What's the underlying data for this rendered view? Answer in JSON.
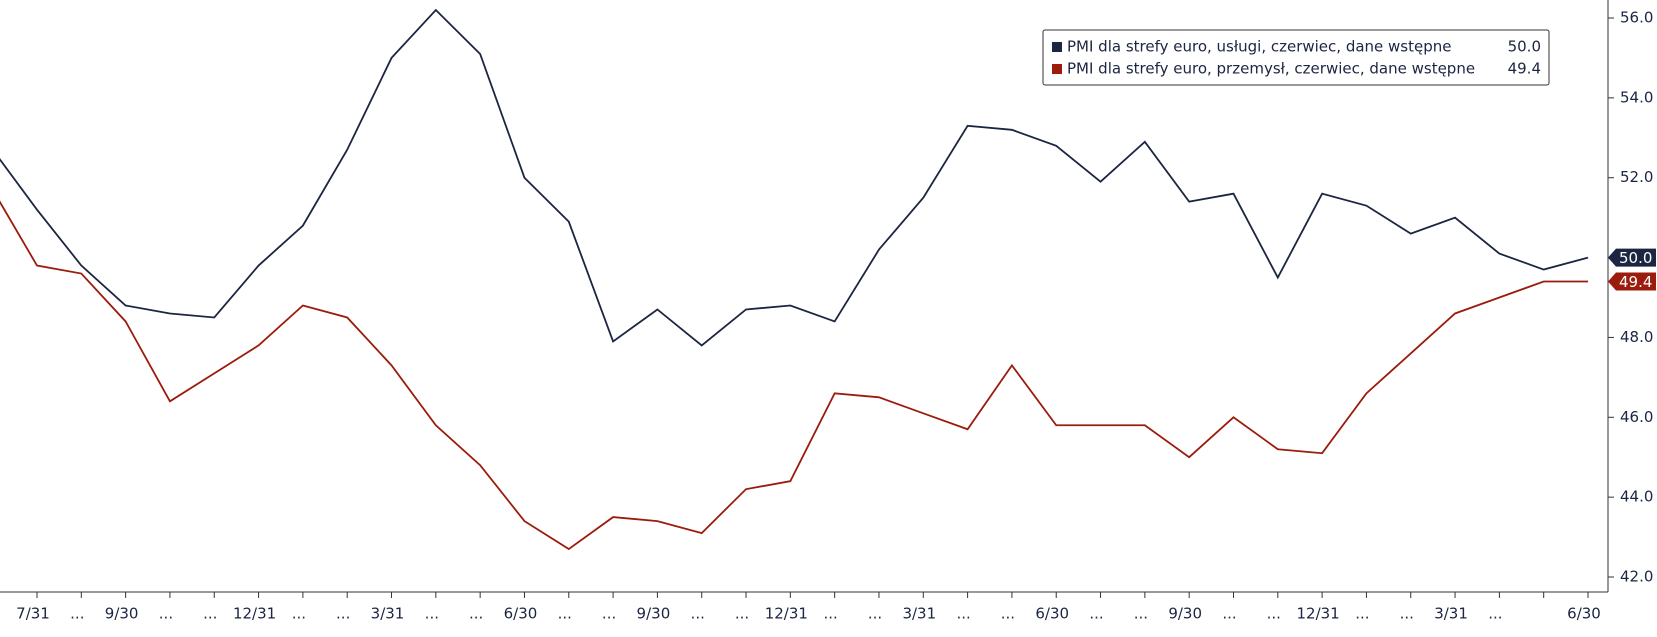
{
  "chart_data": {
    "type": "line",
    "categories": [
      null,
      "7/31",
      "...",
      "9/30",
      "...",
      "...",
      "12/31",
      "...",
      "...",
      "3/31",
      "...",
      "...",
      "6/30",
      "...",
      "...",
      "9/30",
      "...",
      "...",
      "12/31",
      "...",
      "...",
      "3/31",
      "...",
      "...",
      "6/30",
      "...",
      "...",
      "9/30",
      "...",
      "...",
      "12/31",
      "...",
      "...",
      "3/31",
      "...",
      null,
      "6/30"
    ],
    "series": [
      {
        "name": "PMI dla strefy euro, usługi, czerwiec, dane wstępne",
        "color": "#1c2541",
        "values": [
          52.7,
          51.2,
          49.8,
          48.8,
          48.6,
          48.5,
          49.8,
          50.8,
          52.7,
          55.0,
          56.2,
          55.1,
          52.0,
          50.9,
          47.9,
          48.7,
          47.8,
          48.7,
          48.8,
          48.4,
          50.2,
          51.5,
          53.3,
          53.2,
          52.8,
          51.9,
          52.9,
          51.4,
          51.6,
          49.5,
          51.6,
          51.3,
          50.6,
          51.0,
          50.1,
          49.7,
          50.0
        ],
        "value_labels": [
          null,
          null,
          null,
          null,
          null,
          null,
          null,
          null,
          null,
          null,
          null,
          null,
          null,
          null,
          null,
          null,
          null,
          null,
          null,
          null,
          null,
          null,
          null,
          null,
          null,
          null,
          null,
          null,
          null,
          null,
          null,
          null,
          null,
          null,
          null,
          null,
          "50.0"
        ]
      },
      {
        "name": "PMI dla strefy euro, przemysł, czerwiec, dane wstępne",
        "color": "#9b1c0c",
        "values": [
          51.7,
          49.8,
          49.6,
          48.4,
          46.4,
          47.1,
          47.8,
          48.8,
          48.5,
          47.3,
          45.8,
          44.8,
          43.4,
          42.7,
          43.5,
          43.4,
          43.1,
          44.2,
          44.4,
          46.6,
          46.5,
          46.1,
          45.7,
          47.3,
          45.8,
          45.8,
          45.8,
          45.0,
          46.0,
          45.2,
          45.1,
          46.6,
          47.6,
          48.6,
          49.0,
          49.4,
          49.4
        ]
      }
    ],
    "ylim": [
      41.5,
      56.4
    ],
    "yticks": [
      {
        "value": 42,
        "label": "42.0"
      },
      {
        "value": 44,
        "label": "44.0"
      },
      {
        "value": 46,
        "label": "46.0"
      },
      {
        "value": 48,
        "label": "48.0"
      },
      {
        "value": 50,
        "label": "50.0"
      },
      {
        "value": 52,
        "label": "52.0"
      },
      {
        "value": 54,
        "label": "54.0"
      },
      {
        "value": 56,
        "label": "56.0"
      }
    ],
    "legend": "top-right",
    "grid": false
  }
}
